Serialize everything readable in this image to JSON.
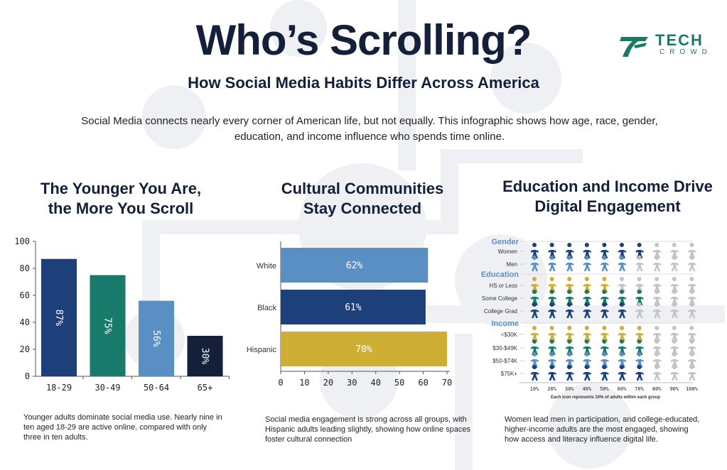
{
  "header": {
    "title": "Who’s Scrolling?",
    "subtitle": "How Social Media Habits Differ Across America",
    "description": "Social Media connects nearly every corner of American life, but not equally. This infographic shows how age, race, gender, education, and income influence who spends time online.",
    "logo": {
      "word1": "TECH",
      "word2": "CROWD",
      "color": "#1a7a64"
    }
  },
  "sections": {
    "age": {
      "title": "The Younger You Are, the More You Scroll",
      "caption": "Younger adults dominate social media use. Nearly nine in ten aged 18-29 are active online, compared with only three in ten adults."
    },
    "race": {
      "title": "Cultural Communities Stay Connected",
      "caption": "Social media engagement is strong across all groups, with Hispanic adults leading slightly, showing how online spaces foster cultural connection"
    },
    "edu": {
      "title": "Education and Income Drive Digital Engagement",
      "caption": "Women lead men in participation, and college-educated, higher-income adults are the most engaged, showing how access and literacy influence digital life."
    }
  },
  "chart_data": [
    {
      "type": "bar",
      "orientation": "vertical",
      "categories": [
        "18-29",
        "30-49",
        "50-64",
        "65+"
      ],
      "values": [
        87,
        75,
        56,
        30
      ],
      "data_labels": [
        "87%",
        "75%",
        "56%",
        "30%"
      ],
      "colors": [
        "#1d3f7a",
        "#177a6b",
        "#5a8fc4",
        "#14203a"
      ],
      "ylim": [
        0,
        100
      ],
      "yticks": [
        0,
        20,
        40,
        60,
        80,
        100
      ],
      "grid": false
    },
    {
      "type": "bar",
      "orientation": "horizontal",
      "categories": [
        "White",
        "Black",
        "Hispanic"
      ],
      "values": [
        62,
        61,
        70
      ],
      "data_labels": [
        "62%",
        "61%",
        "70%"
      ],
      "colors": [
        "#5a8fc4",
        "#1d3f7a",
        "#cfae34"
      ],
      "xlim": [
        0,
        70
      ],
      "xticks": [
        0,
        10,
        20,
        30,
        40,
        50,
        60,
        70
      ],
      "grid": false
    },
    {
      "type": "pictogram",
      "unit_note": "Each icon represents 10% of adults within each group",
      "xticks": [
        "10%",
        "20%",
        "30%",
        "40%",
        "50%",
        "60%",
        "70%",
        "80%",
        "90%",
        "100%"
      ],
      "empty_color": "#c4c4c4",
      "groups": [
        {
          "name": "Gender",
          "rows": [
            {
              "label": "Women",
              "value": 70,
              "color": "#1d3f7a"
            },
            {
              "label": "Men",
              "value": 60,
              "color": "#5a8fc4"
            }
          ]
        },
        {
          "name": "Education",
          "rows": [
            {
              "label": "HS or Less",
              "value": 50,
              "color": "#cfae34"
            },
            {
              "label": "Some College",
              "value": 70,
              "color": "#177a6b"
            },
            {
              "label": "College Grad",
              "value": 60,
              "color": "#1d3f7a"
            }
          ]
        },
        {
          "name": "Income",
          "rows": [
            {
              "label": "<$30K",
              "value": 70,
              "color": "#cfae34"
            },
            {
              "label": "$30-$49K",
              "value": 70,
              "color": "#177a6b"
            },
            {
              "label": "$50-$74K",
              "value": 70,
              "color": "#5a8fc4"
            },
            {
              "label": "$75K+",
              "value": 70,
              "color": "#1d3f7a"
            }
          ]
        }
      ]
    }
  ]
}
